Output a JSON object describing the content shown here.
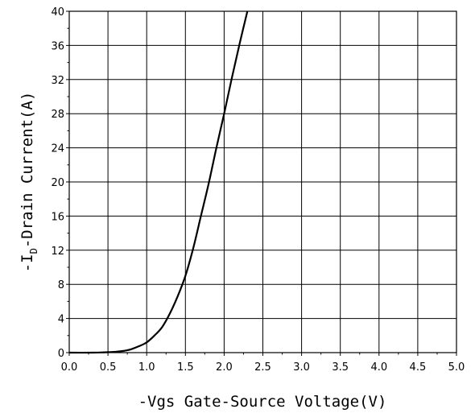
{
  "chart_data": {
    "type": "line",
    "xlabel": "-Vgs Gate-Source Voltage(V)",
    "ylabel": {
      "prefix": "-I",
      "subscript": "D",
      "suffix": "-Drain Current(A)"
    },
    "xlim": [
      0,
      5
    ],
    "ylim": [
      0,
      40
    ],
    "x_ticks": [
      "0.0",
      "0.5",
      "1.0",
      "1.5",
      "2.0",
      "2.5",
      "3.0",
      "3.5",
      "4.0",
      "4.5",
      "5.0"
    ],
    "y_ticks": [
      "0",
      "4",
      "8",
      "12",
      "16",
      "20",
      "24",
      "28",
      "32",
      "36",
      "40"
    ],
    "grid": true,
    "series": [
      {
        "x": [
          0.0,
          0.3,
          0.5,
          0.6,
          0.7,
          0.8,
          0.9,
          1.0,
          1.1,
          1.2,
          1.3,
          1.4,
          1.5,
          1.6,
          1.7,
          1.8,
          1.9,
          2.0,
          2.1,
          2.2,
          2.3
        ],
        "y": [
          0.0,
          0.0,
          0.05,
          0.1,
          0.2,
          0.4,
          0.75,
          1.2,
          2.0,
          3.0,
          4.6,
          6.6,
          9.0,
          12.2,
          16.0,
          19.8,
          24.0,
          28.0,
          32.2,
          36.2,
          40.0
        ]
      }
    ]
  }
}
